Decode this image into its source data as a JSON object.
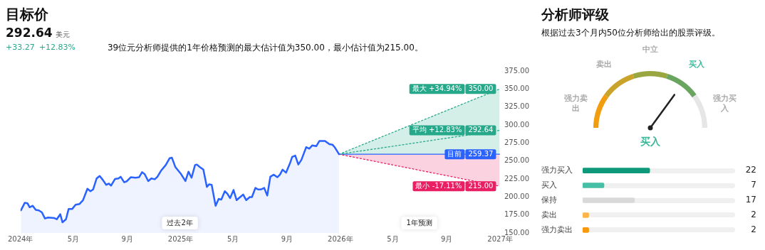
{
  "chart_data": [
    {
      "type": "line",
      "title": "目标价",
      "annotations": [
        "292.64",
        "美元",
        "+33.27",
        "+12.83%",
        "39位元分析师提供的1年价格预测的最大估计值为350.00，最小估计值为215.00。",
        "过去2年",
        "1年预测"
      ],
      "xlim": [
        "2024-01-01",
        "2027-01-01"
      ],
      "xticks": [
        {
          "value": "2024-01-01",
          "label": "2024年"
        },
        {
          "value": "2024-05-01",
          "label": "5月"
        },
        {
          "value": "2024-09-01",
          "label": "9月"
        },
        {
          "value": "2025-01-01",
          "label": "2025年"
        },
        {
          "value": "2025-05-01",
          "label": "5月"
        },
        {
          "value": "2025-09-01",
          "label": "9月"
        },
        {
          "value": "2026-01-01",
          "label": "2026年"
        },
        {
          "value": "2026-05-01",
          "label": "5月"
        },
        {
          "value": "2026-09-01",
          "label": "9月"
        },
        {
          "value": "2027-01-01",
          "label": "2027年"
        }
      ],
      "ylim": [
        150,
        375
      ],
      "yticks": [
        {
          "value": 150,
          "label": "150.00"
        },
        {
          "value": 175,
          "label": "175.00"
        },
        {
          "value": 200,
          "label": "200.00"
        },
        {
          "value": 225,
          "label": "225.00"
        },
        {
          "value": 250,
          "label": "250.00"
        },
        {
          "value": 275,
          "label": "275.00"
        },
        {
          "value": 300,
          "label": "300.00"
        },
        {
          "value": 325,
          "label": "325.00"
        },
        {
          "value": 350,
          "label": "350.00"
        },
        {
          "value": 375,
          "label": "375.00"
        }
      ],
      "grid": false,
      "legend": "right",
      "marker": "none",
      "series": [
        {
          "type": "area",
          "color": "#2962ff",
          "x": [
            "2024-01-02",
            "2024-01-11",
            "2024-01-17",
            "2024-01-22",
            "2024-01-29",
            "2024-02-05",
            "2024-02-12",
            "2024-02-19",
            "2024-02-26",
            "2024-03-04",
            "2024-03-18",
            "2024-03-24",
            "2024-04-01",
            "2024-04-06",
            "2024-04-14",
            "2024-04-20",
            "2024-04-28",
            "2024-05-06",
            "2024-05-15",
            "2024-05-23",
            "2024-06-02",
            "2024-06-09",
            "2024-06-15",
            "2024-06-23",
            "2024-06-30",
            "2024-07-07",
            "2024-07-15",
            "2024-07-21",
            "2024-07-26",
            "2024-08-04",
            "2024-08-12",
            "2024-08-17",
            "2024-08-25",
            "2024-08-31",
            "2024-09-09",
            "2024-09-20",
            "2024-09-28",
            "2024-10-05",
            "2024-10-11",
            "2024-10-19",
            "2024-10-26",
            "2024-11-03",
            "2024-11-09",
            "2024-11-17",
            "2024-11-28",
            "2024-12-07",
            "2024-12-12",
            "2024-12-20",
            "2025-01-01",
            "2025-01-12",
            "2025-01-19",
            "2025-01-26",
            "2025-02-03",
            "2025-02-07",
            "2025-02-14",
            "2025-02-22",
            "2025-03-02",
            "2025-03-07",
            "2025-03-13",
            "2025-03-22",
            "2025-03-29",
            "2025-04-04",
            "2025-04-12",
            "2025-04-18",
            "2025-04-24",
            "2025-05-02",
            "2025-05-09",
            "2025-05-17",
            "2025-05-24",
            "2025-05-31",
            "2025-06-08",
            "2025-06-13",
            "2025-06-21",
            "2025-06-27",
            "2025-07-03",
            "2025-07-11",
            "2025-07-18",
            "2025-07-25",
            "2025-08-02",
            "2025-08-10",
            "2025-08-16",
            "2025-08-22",
            "2025-08-30",
            "2025-09-08",
            "2025-09-13",
            "2025-09-20",
            "2025-09-27",
            "2025-10-04",
            "2025-10-15",
            "2025-10-22",
            "2025-10-29",
            "2025-11-07",
            "2025-11-14",
            "2025-11-27",
            "2025-12-07",
            "2025-12-14",
            "2025-12-19",
            "2025-12-29"
          ],
          "values": [
            181.4,
            192,
            191.3,
            185.7,
            187.8,
            182.1,
            181.4,
            178.6,
            170.1,
            171.5,
            170.8,
            169,
            176.1,
            164.8,
            169,
            183.2,
            183.2,
            189.2,
            190.3,
            195.6,
            211.5,
            208,
            210.4,
            225.7,
            229.2,
            223.9,
            216.8,
            218.6,
            215.8,
            224.9,
            225.7,
            228.1,
            220.4,
            221.8,
            227.4,
            226.7,
            227.4,
            234.5,
            231.7,
            222.1,
            225.7,
            224.6,
            228.1,
            236.3,
            244.4,
            254,
            254.7,
            241.6,
            232.7,
            222.1,
            235.2,
            226.7,
            244.4,
            245.1,
            241.6,
            238,
            214,
            217.5,
            216.8,
            187.8,
            197.4,
            196.3,
            208,
            204.4,
            198.4,
            209.7,
            195.6,
            199.8,
            203.4,
            195.6,
            199.8,
            199.8,
            212.6,
            210.4,
            210.4,
            212.6,
            201.9,
            228.1,
            231,
            227.4,
            231,
            238,
            233.8,
            246.9,
            255.7,
            257.5,
            245.1,
            251.5,
            269.2,
            267.1,
            271.7,
            270.6,
            277.7,
            277.7,
            273.4,
            272.7,
            269.2,
            259.37
          ]
        },
        {
          "type": "line",
          "name": "最大 +34.94%",
          "color": "#26a98b",
          "line_style": "dotted",
          "x": [
            "2025-12-29",
            "2026-12-31"
          ],
          "values": [
            259.37,
            350
          ],
          "lower": [
            259.37,
            259.37
          ],
          "upper": [
            259.37,
            350
          ],
          "value_labels": [
            null,
            "350.00"
          ]
        },
        {
          "type": "line",
          "name": "平均 +12.83%",
          "color": "#26a98b",
          "line_style": "dotted",
          "x": [
            "2025-12-29",
            "2026-12-31"
          ],
          "values": [
            259.37,
            292.64
          ],
          "value_labels": [
            null,
            "292.64"
          ]
        },
        {
          "type": "line",
          "name": "最小 -17.11%",
          "color": "#e91e63",
          "line_style": "dotted",
          "x": [
            "2025-12-29",
            "2026-12-31"
          ],
          "values": [
            259.37,
            215
          ],
          "lower": [
            259.37,
            215
          ],
          "upper": [
            259.37,
            259.37
          ],
          "value_labels": [
            null,
            "215.00"
          ]
        },
        {
          "type": "line",
          "name": "目前",
          "color": "#2962ff",
          "line_style": "solid",
          "x": [
            "2025-12-29",
            "2026-12-31"
          ],
          "values": [
            259.37,
            259.37
          ],
          "value_labels": [
            null,
            "259.37"
          ]
        }
      ]
    },
    {
      "type": "donut",
      "title": "分析师评级",
      "subtitle": "根据过去3个月内50位分析师给出的股票评级。",
      "categories": [
        "强力卖出",
        "卖出",
        "中立",
        "买入",
        "强力买入"
      ],
      "values": [
        20,
        20,
        20,
        20,
        20
      ],
      "colors": [
        "#f29d0f",
        "#c9a32a",
        "#9aa640",
        "#6aa560",
        "#e6e6e6"
      ],
      "needle": "买入"
    },
    {
      "type": "bar",
      "orientation": "horizontal",
      "categories": [
        "强力买入",
        "买入",
        "保持",
        "卖出",
        "强力卖出"
      ],
      "values": [
        22,
        7,
        17,
        2,
        2
      ],
      "colors": [
        "#0e9a7a",
        "#45bfa5",
        "#d9d9d9",
        "#fdb54b",
        "#f7980d"
      ],
      "xlim": [
        0,
        50
      ],
      "data_labels": true
    }
  ]
}
